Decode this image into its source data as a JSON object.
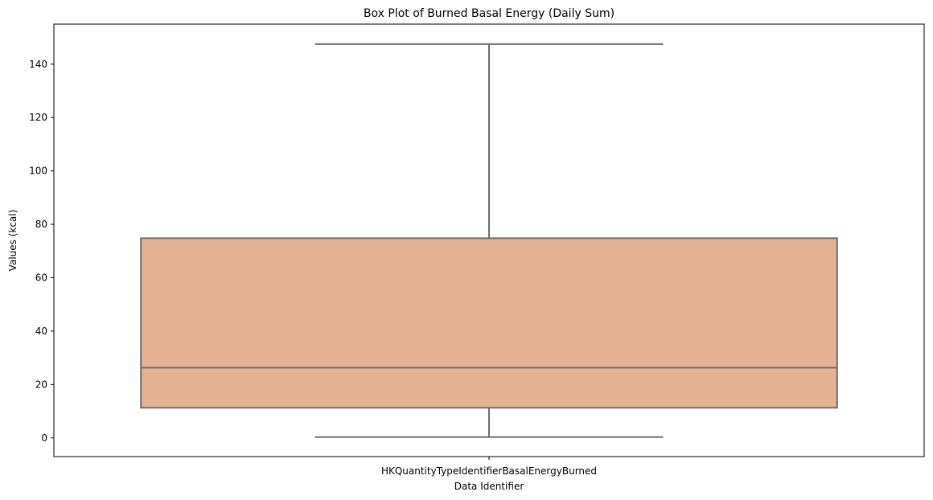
{
  "chart_data": {
    "type": "box",
    "title": "Box Plot of Burned Basal Energy (Daily Sum)",
    "xlabel": "Data Identifier",
    "ylabel": "Values (kcal)",
    "categories": [
      "HKQuantityTypeIdentifierBasalEnergyBurned"
    ],
    "ylim": [
      -7,
      155
    ],
    "yticks": [
      0,
      20,
      40,
      60,
      80,
      100,
      120,
      140
    ],
    "boxes": [
      {
        "category": "HKQuantityTypeIdentifierBasalEnergyBurned",
        "whisker_low": 0.3,
        "q1": 11.3,
        "median": 26.3,
        "q3": 74.8,
        "whisker_high": 147.5
      }
    ],
    "colors": {
      "box_fill": "#e4b292",
      "box_edge": "#6e6e6e"
    },
    "grid": false,
    "legend": "none"
  }
}
